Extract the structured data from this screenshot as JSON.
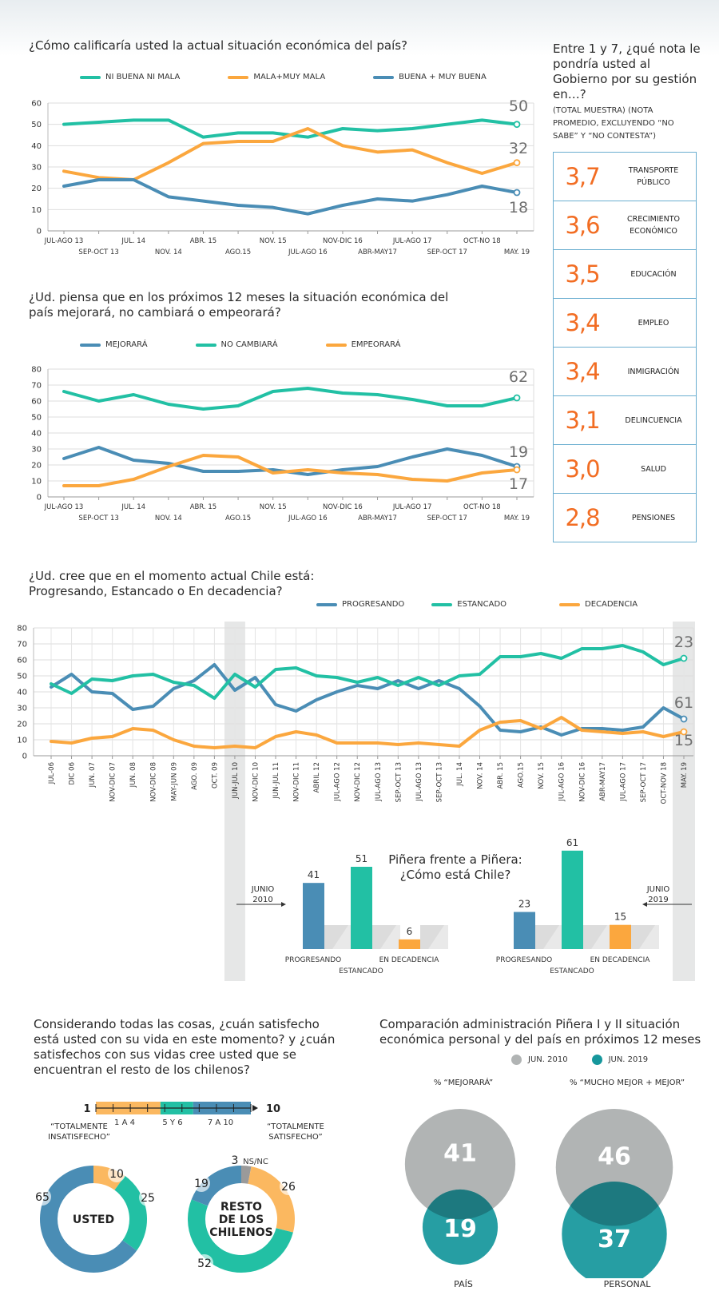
{
  "chart1": {
    "title": "¿Cómo calificaría usted la actual situación económica del país?",
    "legend": [
      "NI BUENA NI MALA",
      "MALA+MUY MALA",
      "BUENA + MUY BUENA"
    ]
  },
  "chart2": {
    "title": "¿Ud. piensa que en los próximos 12 meses la situación económica del país mejorará, no cambiará o empeorará?",
    "legend": [
      "MEJORARÁ",
      "NO CAMBIARÁ",
      "EMPEORARÁ"
    ]
  },
  "chart3": {
    "title": "¿Ud. cree que en el momento actual Chile está: Progresando, Estancado o En decadencia?",
    "legend": [
      "PROGRESANDO",
      "ESTANCADO",
      "DECADENCIA"
    ]
  },
  "grades": {
    "title": "Entre 1 y 7, ¿qué nota le pondría usted al Gobierno por su gestión en…?",
    "subtitle": "(TOTAL MUESTRA) (NOTA PROMEDIO, EXCLUYENDO “NO SABE” Y “NO CONTESTA”)",
    "items": [
      {
        "value": "3,7",
        "label": "TRANSPORTE PÚBLICO"
      },
      {
        "value": "3,6",
        "label": "CRECIMIENTO ECONÓMICO"
      },
      {
        "value": "3,5",
        "label": "EDUCACIÓN"
      },
      {
        "value": "3,4",
        "label": "EMPLEO"
      },
      {
        "value": "3,4",
        "label": "INMIGRACIÓN"
      },
      {
        "value": "3,1",
        "label": "DELINCUENCIA"
      },
      {
        "value": "3,0",
        "label": "SALUD"
      },
      {
        "value": "2,8",
        "label": "PENSIONES"
      }
    ]
  },
  "pinera": {
    "title_line1": "Piñera frente a Piñera:",
    "title_line2": "¿Cómo está Chile?",
    "left_label": "JUNIO 2010",
    "right_label": "JUNIO 2019"
  },
  "satisfaction": {
    "title": "Considerando todas las cosas, ¿cuán satisfecho está usted con su vida en este momento? y ¿cuán satisfechos con sus vidas cree usted que se encuentran el resto de los chilenos?",
    "scale_min": "1",
    "scale_max": "10",
    "scale_groups": [
      "1 A 4",
      "5 Y 6",
      "7 A 10"
    ],
    "left_caption": "“TOTALMENTE INSATISFECHO”",
    "right_caption": "“TOTALMENTE SATISFECHO”",
    "donut1_center": "USTED",
    "donut2_center": "RESTO DE LOS CHILENOS",
    "nsnc_label": "NS/NC"
  },
  "comparison": {
    "title": "Comparación administración Piñera I y II situación económica personal y del país en próximos 12 meses",
    "legend": [
      "JUN. 2010",
      "JUN. 2019"
    ],
    "col1_header": "% “MEJORARÁ”",
    "col2_header": "% “MUCHO MEJOR + MEJOR”",
    "col1_footer": "PAÍS",
    "col2_footer": "PERSONAL"
  },
  "colors": {
    "teal": "#22c0a4",
    "orange": "#fba73e",
    "blue": "#4a8db5",
    "accent": "#f26d23",
    "gray": "#b1b4b4",
    "dark_teal": "#16979c"
  },
  "chart_data": [
    {
      "type": "line",
      "x": [
        "JUL-AGO 13",
        "SEP-OCT 13",
        "JUL. 14",
        "NOV. 14",
        "ABR. 15",
        "AGO.15",
        "NOV. 15",
        "JUL-AGO 16",
        "NOV-DIC 16",
        "ABR-MAY17",
        "JUL-AGO 17",
        "SEP-OCT 17",
        "OCT-NO 18",
        "MAY. 19"
      ],
      "ylim": [
        0,
        60
      ],
      "yticks": [
        0,
        10,
        20,
        30,
        40,
        50,
        60
      ],
      "grid": true,
      "legend": "top",
      "series": [
        {
          "name": "NI BUENA NI MALA",
          "values": [
            50,
            51,
            52,
            52,
            44,
            46,
            46,
            44,
            48,
            47,
            48,
            50,
            52,
            50
          ]
        },
        {
          "name": "MALA+MUY MALA",
          "values": [
            28,
            25,
            24,
            32,
            41,
            42,
            42,
            48,
            40,
            37,
            38,
            32,
            27,
            32
          ]
        },
        {
          "name": "BUENA + MUY BUENA",
          "values": [
            21,
            24,
            24,
            16,
            14,
            12,
            11,
            8,
            12,
            15,
            14,
            17,
            21,
            18
          ]
        }
      ],
      "end_labels": [
        "50",
        "32",
        "18"
      ]
    },
    {
      "type": "line",
      "x": [
        "JUL-AGO 13",
        "SEP-OCT 13",
        "JUL. 14",
        "NOV. 14",
        "ABR. 15",
        "AGO.15",
        "NOV. 15",
        "JUL-AGO 16",
        "NOV-DIC 16",
        "ABR-MAY17",
        "JUL-AGO 17",
        "SEP-OCT 17",
        "OCT-NO 18",
        "MAY. 19"
      ],
      "ylim": [
        0,
        80
      ],
      "yticks": [
        0,
        10,
        20,
        30,
        40,
        50,
        60,
        70,
        80
      ],
      "grid": true,
      "legend": "top",
      "series": [
        {
          "name": "MEJORARÁ",
          "values": [
            24,
            31,
            23,
            21,
            16,
            16,
            17,
            14,
            17,
            19,
            25,
            30,
            26,
            19
          ]
        },
        {
          "name": "NO CAMBIARÁ",
          "values": [
            66,
            60,
            64,
            58,
            55,
            57,
            66,
            68,
            65,
            64,
            61,
            57,
            57,
            62
          ]
        },
        {
          "name": "EMPEORARÁ",
          "values": [
            7,
            7,
            11,
            19,
            26,
            25,
            15,
            17,
            15,
            14,
            11,
            10,
            15,
            17
          ]
        }
      ],
      "end_labels": [
        "19",
        "62",
        "17"
      ]
    },
    {
      "type": "line",
      "x": [
        "JUL-06",
        "DIC 06",
        "JUN. 07",
        "NOV-DIC 07",
        "JUN. 08",
        "NOV-DIC 08",
        "MAY-JUN 09",
        "AGO. 09",
        "OCT. 09",
        "JUN-JUL 10",
        "NOV-DIC 10",
        "JUN-JUL 11",
        "NOV-DIC 11",
        "ABRIL 12",
        "JUL-AGO 12",
        "NOV-DIC 12",
        "JUL-AGO 13",
        "SEP-OCT 13",
        "JUL-AGO 13",
        "SEP-OCT 13",
        "JUL. 14",
        "NOV. 14",
        "ABR. 15",
        "AGO.15",
        "NOV. 15",
        "JUL-AGO 16",
        "NOV-DIC 16",
        "ABR-MAY17",
        "JUL-AGO 17",
        "SEP-OCT 17",
        "OCT-NOV 18",
        "MAY. 19"
      ],
      "ylim": [
        0,
        80
      ],
      "yticks": [
        0,
        10,
        20,
        30,
        40,
        50,
        60,
        70,
        80
      ],
      "grid": true,
      "legend": "top",
      "series": [
        {
          "name": "PROGRESANDO",
          "values": [
            43,
            51,
            40,
            39,
            29,
            31,
            42,
            47,
            57,
            41,
            49,
            32,
            28,
            35,
            40,
            44,
            42,
            47,
            42,
            47,
            42,
            31,
            16,
            15,
            18,
            13,
            17,
            17,
            16,
            18,
            30,
            23
          ]
        },
        {
          "name": "ESTANCADO",
          "values": [
            45,
            39,
            48,
            47,
            50,
            51,
            46,
            44,
            36,
            51,
            43,
            54,
            55,
            50,
            49,
            46,
            49,
            44,
            49,
            44,
            50,
            51,
            62,
            62,
            64,
            61,
            67,
            67,
            69,
            65,
            57,
            61
          ]
        },
        {
          "name": "DECADENCIA",
          "values": [
            9,
            8,
            11,
            12,
            17,
            16,
            10,
            6,
            5,
            6,
            5,
            12,
            15,
            13,
            8,
            8,
            8,
            7,
            8,
            7,
            6,
            16,
            21,
            22,
            17,
            24,
            16,
            15,
            14,
            15,
            12,
            15
          ]
        }
      ],
      "end_labels": [
        "23",
        "61",
        "15"
      ],
      "highlight": [
        "JUN-JUL 10",
        "MAY. 19"
      ]
    },
    {
      "type": "bar",
      "categories": [
        "PROGRESANDO",
        "ESTANCADO",
        "EN DECADENCIA"
      ],
      "series": [
        {
          "name": "JUNIO 2010",
          "values": [
            41,
            51,
            6
          ]
        },
        {
          "name": "JUNIO 2019",
          "values": [
            23,
            61,
            15
          ]
        }
      ]
    },
    {
      "type": "pie",
      "center": "USTED",
      "categories": [
        "1 A 4",
        "5 Y 6",
        "7 A 10"
      ],
      "values": [
        10,
        25,
        65
      ]
    },
    {
      "type": "pie",
      "center": "RESTO DE LOS CHILENOS",
      "categories": [
        "NS/NC",
        "1 A 4",
        "5 Y 6",
        "7 A 10"
      ],
      "values": [
        3,
        26,
        52,
        19
      ]
    },
    {
      "type": "scatter",
      "categories": [
        "PAÍS",
        "PERSONAL"
      ],
      "series": [
        {
          "name": "JUN. 2010",
          "values": [
            41,
            46
          ]
        },
        {
          "name": "JUN. 2019",
          "values": [
            19,
            37
          ]
        }
      ]
    }
  ]
}
